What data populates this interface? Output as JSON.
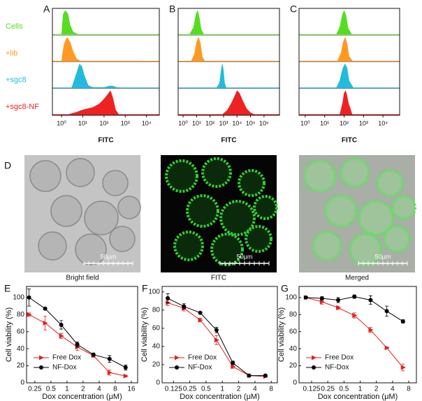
{
  "panel_labels": [
    "A",
    "B",
    "C",
    "D",
    "E",
    "F",
    "G"
  ],
  "images": [
    {
      "caption": "Bright field",
      "scale_bar": "50μm"
    },
    {
      "caption": "FITC",
      "scale_bar": "50μm"
    },
    {
      "caption": "Merged",
      "scale_bar": "50μm"
    }
  ],
  "chart_data": [
    {
      "type": "density",
      "xlabel": "FITC",
      "xscale": "log",
      "xlim": [
        0.37,
        40000
      ],
      "xticks": [
        {
          "value": 1,
          "label": "10⁰"
        },
        {
          "value": 10,
          "label": "10¹"
        },
        {
          "value": 100,
          "label": "10²"
        },
        {
          "value": 1000,
          "label": "10³"
        },
        {
          "value": 10000,
          "label": "10⁴"
        }
      ],
      "series": [
        {
          "name": "Cells",
          "color": "#55dd22",
          "x": [
            1,
            1.2,
            1.5,
            2,
            2.5,
            3.5,
            6
          ],
          "values": [
            0,
            0.85,
            1,
            0.85,
            0.4,
            0.1,
            0
          ]
        },
        {
          "name": "+lib",
          "color": "#ff9922",
          "x": [
            1,
            1.3,
            1.8,
            2.5,
            3.5,
            5,
            8
          ],
          "values": [
            0,
            0.7,
            1,
            0.8,
            0.4,
            0.1,
            0
          ]
        },
        {
          "name": "+sgc8",
          "color": "#22bbdd",
          "x": [
            3,
            5,
            7,
            9,
            12,
            18,
            30,
            100,
            180,
            250,
            400,
            700
          ],
          "values": [
            0,
            0.6,
            1,
            0.9,
            0.5,
            0.1,
            0.02,
            0.02,
            0.08,
            0.08,
            0.02,
            0
          ]
        },
        {
          "name": "+sgc8-NF",
          "color": "#ee2222",
          "x": [
            2,
            5,
            10,
            30,
            60,
            100,
            150,
            200,
            260,
            350,
            500
          ],
          "values": [
            0,
            0.1,
            0.2,
            0.3,
            0.45,
            0.65,
            0.85,
            1,
            0.7,
            0.2,
            0
          ]
        }
      ]
    },
    {
      "type": "density",
      "xlabel": "FITC",
      "xscale": "log",
      "xlim": [
        0.43,
        14000000
      ],
      "xticks": [
        {
          "value": 1,
          "label": "10⁰"
        },
        {
          "value": 10,
          "label": "10¹"
        },
        {
          "value": 100,
          "label": "10²"
        },
        {
          "value": 1000,
          "label": "10³"
        },
        {
          "value": 10000,
          "label": "10⁴"
        },
        {
          "value": 100000,
          "label": "10⁵"
        },
        {
          "value": 1000000,
          "label": "10⁶"
        }
      ],
      "series": [
        {
          "color": "#55dd22",
          "x": [
            3,
            6,
            9,
            12,
            16,
            22,
            35
          ],
          "values": [
            0,
            0.3,
            0.85,
            1,
            0.7,
            0.2,
            0
          ]
        },
        {
          "color": "#ff9922",
          "x": [
            4,
            7,
            10,
            14,
            19,
            26,
            40
          ],
          "values": [
            0,
            0.3,
            0.8,
            1,
            0.75,
            0.2,
            0
          ]
        },
        {
          "color": "#22bbdd",
          "x": [
            300,
            500,
            650,
            800,
            950,
            1200,
            1600
          ],
          "values": [
            0,
            0.2,
            0.7,
            1,
            0.8,
            0.2,
            0
          ]
        },
        {
          "color": "#ee2222",
          "x": [
            800,
            2000,
            4000,
            7000,
            10000,
            15000,
            25000,
            50000,
            100000,
            200000
          ],
          "values": [
            0,
            0.2,
            0.5,
            0.8,
            1,
            0.9,
            0.6,
            0.25,
            0.08,
            0
          ]
        }
      ]
    },
    {
      "type": "density",
      "xlabel": "FITC",
      "xscale": "log",
      "xlim": [
        0.48,
        72000
      ],
      "xticks": [
        {
          "value": 1,
          "label": "10⁰"
        },
        {
          "value": 10,
          "label": "10¹"
        },
        {
          "value": 100,
          "label": "10²"
        },
        {
          "value": 1000,
          "label": "10³"
        },
        {
          "value": 10000,
          "label": "10⁴"
        }
      ],
      "series": [
        {
          "color": "#55dd22",
          "x": [
            40,
            60,
            80,
            100,
            125,
            160,
            250
          ],
          "values": [
            0,
            0.3,
            0.8,
            1,
            0.8,
            0.25,
            0
          ]
        },
        {
          "color": "#ff9922",
          "x": [
            45,
            70,
            90,
            115,
            140,
            180,
            280
          ],
          "values": [
            0,
            0.35,
            0.8,
            1,
            0.75,
            0.2,
            0
          ]
        },
        {
          "color": "#22bbdd",
          "x": [
            40,
            60,
            85,
            110,
            140,
            180,
            300
          ],
          "values": [
            0,
            0.3,
            0.8,
            1,
            0.85,
            0.3,
            0
          ]
        },
        {
          "color": "#ee2222",
          "x": [
            60,
            85,
            100,
            120,
            140,
            170,
            200,
            260
          ],
          "values": [
            0,
            0.5,
            0.9,
            1,
            0.8,
            0.45,
            0.3,
            0
          ]
        }
      ]
    },
    {
      "type": "line",
      "xlabel": "Dox concentration (μM)",
      "ylabel": "Cell viability (%)",
      "xscale": "log",
      "xlim": [
        0.175,
        21
      ],
      "xticks": [
        0.25,
        0.5,
        1,
        2,
        4,
        8,
        16
      ],
      "ylim": [
        0,
        113
      ],
      "yticks": [
        0,
        20,
        40,
        60,
        80,
        100
      ],
      "legend": "lower left",
      "x": [
        0.195,
        0.39,
        0.78,
        1.56,
        3.125,
        6.25,
        12.5
      ],
      "series": [
        {
          "name": "Free Dox",
          "color": "#e02020",
          "marker": "triangle",
          "values": [
            80,
            70,
            55,
            42,
            32,
            12,
            8
          ],
          "errors": [
            2,
            8,
            3,
            4,
            2,
            3,
            1
          ]
        },
        {
          "name": "NF-Dox",
          "color": "#000000",
          "marker": "circle",
          "values": [
            100,
            87,
            68,
            45,
            33,
            28,
            18
          ],
          "errors": [
            10,
            1,
            5,
            3,
            2,
            4,
            3
          ]
        }
      ]
    },
    {
      "type": "line",
      "xlabel": "Dox concentration (μM)",
      "ylabel": "Cell viability (%)",
      "xscale": "log",
      "xlim": [
        0.077,
        10.4
      ],
      "xticks": [
        0.125,
        0.25,
        0.5,
        1,
        2,
        4,
        8
      ],
      "ylim": [
        0,
        106
      ],
      "yticks": [
        0,
        20,
        40,
        60,
        80,
        100
      ],
      "legend": "lower left",
      "x": [
        0.098,
        0.195,
        0.39,
        0.78,
        1.56,
        3.125,
        6.25
      ],
      "series": [
        {
          "name": "Free Dox",
          "color": "#e02020",
          "marker": "triangle",
          "values": [
            88,
            82,
            69,
            47,
            18,
            8,
            7
          ],
          "errors": [
            3,
            3,
            2,
            5,
            2,
            1,
            1
          ]
        },
        {
          "name": "NF-Dox",
          "color": "#000000",
          "marker": "circle",
          "values": [
            93,
            84,
            77,
            58,
            22,
            8,
            8
          ],
          "errors": [
            5,
            3,
            1,
            3,
            2,
            1,
            1
          ]
        }
      ]
    },
    {
      "type": "line",
      "xlabel": "Dox concentration (μM)",
      "ylabel": "Cell viability (%)",
      "xscale": "log",
      "xlim": [
        0.073,
        11.1
      ],
      "xticks": [
        0.125,
        0.25,
        0.5,
        1,
        2,
        4,
        8
      ],
      "ylim": [
        0,
        113
      ],
      "yticks": [
        0,
        20,
        40,
        60,
        80,
        100
      ],
      "legend": "lower left",
      "x": [
        0.098,
        0.195,
        0.39,
        0.78,
        1.56,
        3.125,
        6.25
      ],
      "series": [
        {
          "name": "Free Dox",
          "color": "#e02020",
          "marker": "triangle",
          "values": [
            100,
            95,
            88,
            79,
            62,
            41,
            18
          ],
          "errors": [
            1,
            3,
            2,
            3,
            3,
            1,
            4
          ]
        },
        {
          "name": "NF-Dox",
          "color": "#000000",
          "marker": "circle",
          "values": [
            100,
            99,
            97,
            101,
            97,
            84,
            72
          ],
          "errors": [
            1,
            2,
            3,
            2,
            5,
            6,
            2
          ]
        }
      ]
    }
  ]
}
